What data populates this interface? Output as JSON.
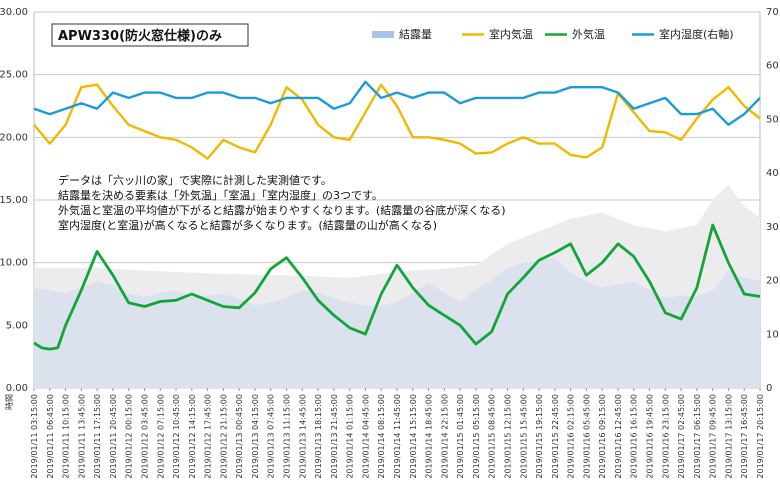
{
  "chart_data": {
    "type": "line",
    "title": "APW330(防火窓仕様)のみ",
    "xlabel": "時間",
    "ylabel": "",
    "y_left": {
      "min": 0,
      "max": 30,
      "ticks": [
        "0.00",
        "5.00",
        "10.00",
        "15.00",
        "20.00",
        "25.00",
        "30.00"
      ]
    },
    "y_right": {
      "min": 0,
      "max": 70,
      "ticks": [
        "0",
        "10",
        "20",
        "30",
        "40",
        "50",
        "60",
        "70"
      ]
    },
    "grid": "horizontal",
    "legend_position": "top-right",
    "legend": [
      {
        "name": "結露量",
        "color": "#a9c4e8",
        "kind": "area"
      },
      {
        "name": "室内気温",
        "color": "#f2b800",
        "kind": "line"
      },
      {
        "name": "外気温",
        "color": "#13a538",
        "kind": "line"
      },
      {
        "name": "室内湿度(右軸)",
        "color": "#1a9bdb",
        "kind": "line"
      }
    ],
    "annotation": [
      "データは「六ッ川の家」で実際に計測した実測値です。",
      "結露量を決める要素は「外気温」「室温」「室内湿度」の3つです。",
      "外気温と室温の平均値が下がると結露が始まりやすくなります。(結露量の谷底が深くなる)",
      "室内湿度(と室温)が高くなると結露が多くなります。(結露量の山が高くなる)"
    ],
    "x_categories": [
      "2019/01/11 03:15:00",
      "2019/01/11 06:45:00",
      "2019/01/11 10:15:00",
      "2019/01/11 13:45:00",
      "2019/01/11 17:15:00",
      "2019/01/11 20:45:00",
      "2019/01/12 00:15:00",
      "2019/01/12 03:45:00",
      "2019/01/12 07:15:00",
      "2019/01/12 10:45:00",
      "2019/01/12 14:15:00",
      "2019/01/12 17:45:00",
      "2019/01/12 21:15:00",
      "2019/01/13 00:45:00",
      "2019/01/13 04:15:00",
      "2019/01/13 07:45:00",
      "2019/01/13 11:15:00",
      "2019/01/13 14:45:00",
      "2019/01/13 18:15:00",
      "2019/01/13 21:45:00",
      "2019/01/14 01:15:00",
      "2019/01/14 04:45:00",
      "2019/01/14 08:15:00",
      "2019/01/14 11:45:00",
      "2019/01/14 15:15:00",
      "2019/01/14 18:45:00",
      "2019/01/14 22:15:00",
      "2019/01/15 01:45:00",
      "2019/01/15 05:15:00",
      "2019/01/15 08:45:00",
      "2019/01/15 12:15:00",
      "2019/01/15 15:45:00",
      "2019/01/15 19:15:00",
      "2019/01/15 22:45:00",
      "2019/01/16 02:15:00",
      "2019/01/16 05:45:00",
      "2019/01/16 09:15:00",
      "2019/01/16 12:45:00",
      "2019/01/16 16:15:00",
      "2019/01/16 19:45:00",
      "2019/01/16 23:15:00",
      "2019/01/17 02:45:00",
      "2019/01/17 06:15:00",
      "2019/01/17 09:45:00",
      "2019/01/17 13:15:00",
      "2019/01/17 16:45:00",
      "2019/01/17 20:15:00"
    ],
    "x_range_index": [
      0,
      46
    ],
    "series": [
      {
        "name": "結露量",
        "axis": "left",
        "x": [
          0,
          2,
          4,
          5,
          6,
          7,
          8,
          9,
          10,
          11,
          12,
          13,
          14,
          15,
          16,
          17,
          18,
          19,
          20,
          21,
          22,
          23,
          24,
          25,
          26,
          27,
          28,
          29,
          30,
          31,
          32,
          33,
          34,
          35,
          36,
          37,
          38,
          39,
          40,
          41,
          42,
          43,
          44,
          45,
          46
        ],
        "values": [
          8.0,
          7.6,
          8.5,
          8.2,
          7.5,
          7.3,
          7.6,
          7.8,
          7.3,
          7.4,
          7.5,
          7.1,
          6.6,
          6.8,
          7.2,
          7.8,
          7.6,
          7.2,
          6.8,
          6.6,
          6.5,
          6.9,
          7.6,
          8.4,
          7.6,
          6.9,
          7.8,
          8.6,
          9.6,
          10.0,
          10.2,
          10.4,
          9.2,
          8.5,
          8.0,
          8.3,
          8.5,
          7.8,
          7.2,
          7.4,
          7.3,
          7.8,
          9.4,
          8.8,
          8.6
        ]
      },
      {
        "name": "結露量 (envelope)",
        "axis": "left",
        "x": [
          0,
          4,
          8,
          12,
          16,
          20,
          24,
          26,
          28,
          30,
          32,
          34,
          36,
          38,
          40,
          42,
          43,
          44,
          45,
          46
        ],
        "values": [
          9.6,
          9.6,
          9.3,
          9.1,
          9.0,
          8.8,
          9.4,
          9.5,
          9.8,
          11.5,
          12.5,
          13.5,
          14.0,
          13.0,
          12.5,
          13.0,
          15.0,
          16.2,
          14.5,
          13.6
        ]
      },
      {
        "name": "室内気温",
        "axis": "left",
        "x": [
          0,
          1,
          2,
          3,
          4,
          5,
          6,
          7,
          8,
          9,
          10,
          11,
          12,
          13,
          14,
          15,
          16,
          17,
          18,
          19,
          20,
          21,
          22,
          23,
          24,
          25,
          26,
          27,
          28,
          29,
          30,
          31,
          32,
          33,
          34,
          35,
          36,
          37,
          38,
          39,
          40,
          41,
          42,
          43,
          44,
          45,
          46
        ],
        "values": [
          21.0,
          19.5,
          21.0,
          24.0,
          24.2,
          22.5,
          21.0,
          20.5,
          20.0,
          19.8,
          19.2,
          18.3,
          19.8,
          19.2,
          18.8,
          21.0,
          24.0,
          23.0,
          21.0,
          20.0,
          19.8,
          22.0,
          24.2,
          22.5,
          20.0,
          20.0,
          19.8,
          19.5,
          18.7,
          18.8,
          19.5,
          20.0,
          19.5,
          19.5,
          18.6,
          18.4,
          19.2,
          23.5,
          22.0,
          20.5,
          20.4,
          19.8,
          21.5,
          23.0,
          24.0,
          22.5,
          21.5
        ]
      },
      {
        "name": "外気温",
        "axis": "left",
        "x": [
          0,
          0.5,
          1,
          1.5,
          2,
          3,
          4,
          5,
          6,
          7,
          8,
          9,
          10,
          11,
          12,
          13,
          14,
          15,
          16,
          17,
          18,
          19,
          20,
          21,
          22,
          23,
          24,
          25,
          26,
          27,
          28,
          29,
          30,
          31,
          32,
          33,
          34,
          35,
          36,
          37,
          38,
          39,
          40,
          41,
          42,
          43,
          44,
          45,
          46
        ],
        "values": [
          3.6,
          3.2,
          3.1,
          3.2,
          5.0,
          7.8,
          10.9,
          9.0,
          6.8,
          6.5,
          6.9,
          7.0,
          7.5,
          7.0,
          6.5,
          6.4,
          7.6,
          9.5,
          10.4,
          8.8,
          7.0,
          5.8,
          4.8,
          4.3,
          7.5,
          9.8,
          8.0,
          6.6,
          5.8,
          5.0,
          3.5,
          4.5,
          7.5,
          8.8,
          10.2,
          10.8,
          11.5,
          9.0,
          10.0,
          11.5,
          10.5,
          8.5,
          6.0,
          5.5,
          8.0,
          13.0,
          10.0,
          7.5,
          7.3
        ]
      },
      {
        "name": "室内湿度(右軸)",
        "axis": "right",
        "x": [
          0,
          1,
          2,
          3,
          4,
          5,
          6,
          7,
          8,
          9,
          10,
          11,
          12,
          13,
          14,
          15,
          16,
          17,
          18,
          19,
          20,
          21,
          22,
          23,
          24,
          25,
          26,
          27,
          28,
          29,
          30,
          31,
          32,
          33,
          34,
          35,
          36,
          37,
          38,
          39,
          40,
          41,
          42,
          43,
          44,
          45,
          46
        ],
        "values": [
          52,
          51,
          52,
          53,
          52,
          55,
          54,
          55,
          55,
          54,
          54,
          55,
          55,
          54,
          54,
          53,
          54,
          54,
          54,
          52,
          53,
          57,
          54,
          55,
          54,
          55,
          55,
          53,
          54,
          54,
          54,
          54,
          55,
          55,
          56,
          56,
          56,
          55,
          52,
          53,
          54,
          51,
          51,
          52,
          49,
          51,
          54
        ]
      }
    ]
  }
}
